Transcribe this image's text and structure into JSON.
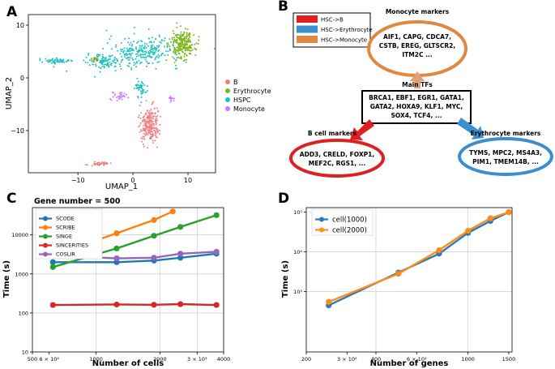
{
  "colors": {
    "B": "#f08080",
    "Erythrocyte": "#7cb518",
    "HSPC": "#20c0c0",
    "Monocyte": "#c77cff",
    "red": "#e02020",
    "blue": "#3a8fd0",
    "orange": "#e08840",
    "panelC_SCODE": "#1f77b4",
    "SCRIBE": "#ff7f0e",
    "SINGE": "#2ca02c",
    "SINCERITIES": "#d62728",
    "COSLIR": "#9467bd"
  },
  "panels": {
    "A": {
      "letter": "A"
    },
    "B": {
      "letter": "B"
    },
    "C": {
      "letter": "C"
    },
    "D": {
      "letter": "D"
    }
  },
  "chart_data": [
    {
      "type": "scatter",
      "panel": "A",
      "xlabel": "UMAP_1",
      "ylabel": "UMAP_2",
      "xticks": [
        "−10",
        "0",
        "10"
      ],
      "yticks": [
        "10",
        "0",
        "−10"
      ],
      "xlim": [
        -19,
        15
      ],
      "ylim": [
        -18,
        12
      ],
      "legend": [
        "B",
        "Erythrocyte",
        "HSPC",
        "Monocyte"
      ],
      "legend_position": "right",
      "clusters": [
        {
          "name": "HSPC",
          "cx": 2,
          "cy": 5,
          "sx": 6,
          "sy": 2.5,
          "n": 260
        },
        {
          "name": "HSPC",
          "cx": -5,
          "cy": 3,
          "sx": 3,
          "sy": 1.3,
          "n": 100
        },
        {
          "name": "HSPC",
          "cx": -14,
          "cy": 3.2,
          "sx": 3,
          "sy": 0.5,
          "n": 60
        },
        {
          "name": "HSPC",
          "cx": 1.5,
          "cy": -2,
          "sx": 1,
          "sy": 1.5,
          "n": 50
        },
        {
          "name": "Erythrocyte",
          "cx": 9,
          "cy": 6.5,
          "sx": 2,
          "sy": 2.5,
          "n": 220
        },
        {
          "name": "Erythrocyte",
          "cx": -7,
          "cy": 3.5,
          "sx": 0.6,
          "sy": 0.4,
          "n": 15
        },
        {
          "name": "Monocyte",
          "cx": -2.5,
          "cy": -3.5,
          "sx": 1.2,
          "sy": 0.8,
          "n": 30
        },
        {
          "name": "Monocyte",
          "cx": 7,
          "cy": -4,
          "sx": 0.5,
          "sy": 0.5,
          "n": 12
        },
        {
          "name": "B",
          "cx": 3,
          "cy": -9,
          "sx": 1.6,
          "sy": 2.8,
          "n": 240
        },
        {
          "name": "B",
          "cx": -6,
          "cy": -16.3,
          "sx": 1.6,
          "sy": 0.3,
          "n": 40
        }
      ]
    },
    {
      "type": "line",
      "panel": "C",
      "title": "Gene number = 500",
      "xlabel": "Number of cells",
      "ylabel": "Time (s)",
      "xscale": "log",
      "yscale": "log",
      "xlim": [
        500,
        4000
      ],
      "ylim": [
        10,
        50000
      ],
      "xtick_labels": [
        "500",
        "6 × 10²",
        "1000",
        "2000",
        "3 × 10³",
        "4000"
      ],
      "ytick_labels": [
        "10",
        "100",
        "1000",
        "10000"
      ],
      "legend_position": "upper left",
      "series": [
        {
          "name": "SCODE",
          "x": [
            625,
            1250,
            1875,
            2500,
            3700
          ],
          "y": [
            2000,
            2000,
            2200,
            2600,
            3300
          ]
        },
        {
          "name": "SCRIBE",
          "x": [
            625,
            1250,
            1875,
            2300
          ],
          "y": [
            3000,
            11000,
            24000,
            40000
          ]
        },
        {
          "name": "SINGE",
          "x": [
            625,
            1250,
            1875,
            2500,
            3700
          ],
          "y": [
            1500,
            4500,
            9500,
            16000,
            32000
          ]
        },
        {
          "name": "SINCERITIES",
          "x": [
            625,
            1250,
            1875,
            2500,
            3700
          ],
          "y": [
            160,
            165,
            162,
            168,
            160
          ]
        },
        {
          "name": "COSLIR",
          "x": [
            625,
            1250,
            1875,
            2500,
            3700
          ],
          "y": [
            3000,
            2500,
            2600,
            3300,
            3700
          ]
        }
      ]
    },
    {
      "type": "line",
      "panel": "D",
      "xlabel": "Number of genes",
      "ylabel": "Time (s)",
      "xscale": "log",
      "yscale": "log",
      "xlim": [
        200,
        1550
      ],
      "ylim": [
        30,
        130000
      ],
      "xtick_labels": [
        "200",
        "3 × 10²",
        "400",
        "6 × 10²",
        "1000",
        "1500"
      ],
      "ytick_labels": [
        "10³",
        "10⁴",
        "10⁵"
      ],
      "legend_position": "upper left",
      "series": [
        {
          "name": "cell(1000)",
          "x": [
            250,
            500,
            750,
            1000,
            1250,
            1500
          ],
          "y": [
            450,
            3000,
            9000,
            30000,
            60000,
            100000
          ]
        },
        {
          "name": "cell(2000)",
          "x": [
            250,
            500,
            750,
            1000,
            1250,
            1500
          ],
          "y": [
            550,
            2800,
            11000,
            34000,
            70000,
            100000
          ]
        }
      ]
    }
  ],
  "diagram": {
    "legend": [
      {
        "label": "HSC->B",
        "color": "#e02020"
      },
      {
        "label": "HSC->Erythrocyte",
        "color": "#3a8fd0"
      },
      {
        "label": "HSC->Monocyte",
        "color": "#e08840"
      }
    ],
    "monocyte": {
      "title": "Monocyte markers",
      "lines": [
        "AIF1, CAPG, CDCA7,",
        "CSTB, EREG, GLTSCR2,",
        "ITM2C ..."
      ]
    },
    "tfs": {
      "title": "Main TFs",
      "lines": [
        "BRCA1, EBF1, EGR1, GATA1,",
        "GATA2, HOXA9, KLF1, MYC,",
        "SOX4, TCF4, ..."
      ]
    },
    "bcell": {
      "title": "B cell markers",
      "lines": [
        "ADD3, CRELD, FOXP1,",
        "MEF2C, RGS1, ..."
      ]
    },
    "erythro": {
      "title": "Erythrocyte markers",
      "lines": [
        "TYMS, MPC2, MS4A3,",
        "PIM1, TMEM14B, ..."
      ]
    }
  }
}
